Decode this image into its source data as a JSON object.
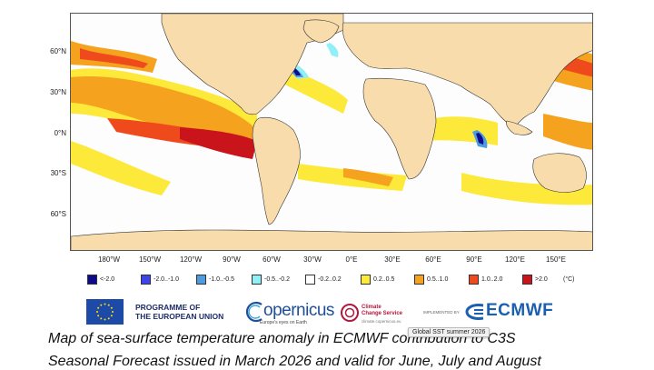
{
  "map": {
    "lat_labels": [
      "60°N",
      "30°N",
      "0°N",
      "30°S",
      "60°S"
    ],
    "lon_labels": [
      "180°W",
      "150°W",
      "120°W",
      "90°W",
      "60°W",
      "30°W",
      "0°E",
      "30°E",
      "60°E",
      "90°E",
      "120°E",
      "150°E"
    ]
  },
  "legend": {
    "items": [
      {
        "label": "<-2.0",
        "color": "#0b0b8c"
      },
      {
        "label": "-2.0..-1.0",
        "color": "#3d45e8"
      },
      {
        "label": "-1.0..-0.5",
        "color": "#4e9be0"
      },
      {
        "label": "-0.5..-0.2",
        "color": "#8ff0f5"
      },
      {
        "label": "-0.2..0.2",
        "color": "#ffffff"
      },
      {
        "label": "0.2..0.5",
        "color": "#fde93a"
      },
      {
        "label": "0.5..1.0",
        "color": "#f5a21f"
      },
      {
        "label": "1.0..2.0",
        "color": "#ef4a1c"
      },
      {
        "label": ">2.0",
        "color": "#c8141a"
      }
    ],
    "unit": "(°C)"
  },
  "logos": {
    "eu_line1": "PROGRAMME OF",
    "eu_line2": "THE EUROPEAN UNION",
    "copernicus": "opernicus",
    "copernicus_sub": "Europe's eyes on Earth",
    "c3s_line1": "Climate",
    "c3s_line2": "Change Service",
    "c3s_url": "climate.copernicus.eu",
    "implemented_by": "IMPLEMENTED BY",
    "ecmwf": "ECMWF"
  },
  "tooltip": "Global SST summer 2026",
  "caption": {
    "line1": "Map of sea-surface temperature anomaly in ECMWF contribution to C3S",
    "line2": "Seasonal Forecast issued in March 2026 and valid for June, July and August"
  }
}
